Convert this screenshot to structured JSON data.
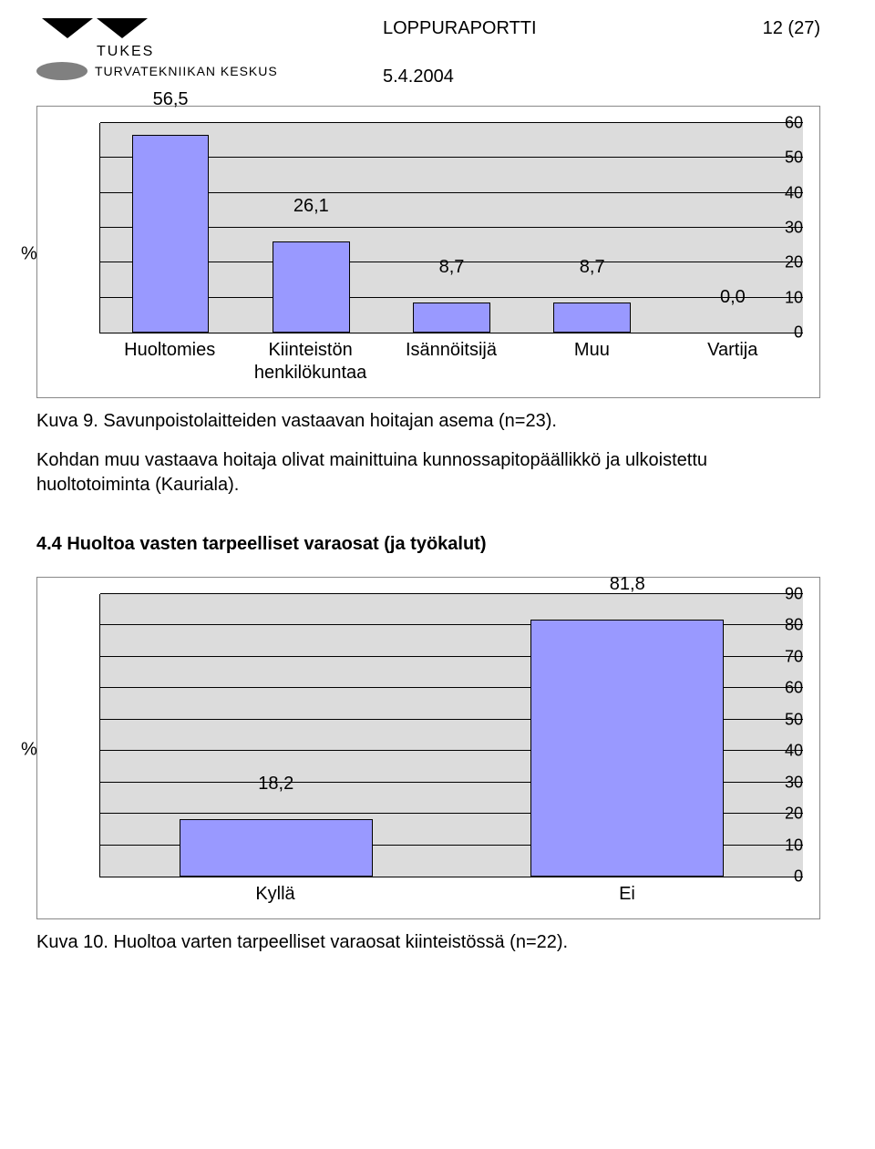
{
  "header": {
    "logo_main": "TUKES",
    "logo_sub": "TURVATEKNIIKAN KESKUS",
    "title": "LOPPURAPORTTI",
    "date": "5.4.2004",
    "page": "12 (27)"
  },
  "chart1": {
    "type": "bar",
    "y_title": "%",
    "y_ticks": [
      "0",
      "10",
      "20",
      "30",
      "40",
      "50",
      "60"
    ],
    "y_max": 60,
    "bar_color": "#9999ff",
    "plot_bg": "#dcdcdc",
    "grid_color": "#000000",
    "border_color": "#000000",
    "value_fontsize": 20,
    "label_fontsize": 20,
    "categories": [
      "Huoltomies",
      "Kiinteistön\nhenkilökuntaa",
      "Isännöitsijä",
      "Muu",
      "Vartija"
    ],
    "values": [
      56.5,
      26.1,
      8.7,
      8.7,
      0.0
    ],
    "value_labels": [
      "56,5",
      "26,1",
      "8,7",
      "8,7",
      "0,0"
    ]
  },
  "caption1": "Kuva 9. Savunpoistolaitteiden vastaavan hoitajan asema (n=23).",
  "para1": "Kohdan muu vastaava hoitaja olivat mainittuina kunnossapitopäällikkö ja ulkoistettu huoltotoiminta (Kauriala).",
  "section_title": "4.4 Huoltoa vasten tarpeelliset varaosat (ja työkalut)",
  "chart2": {
    "type": "bar",
    "y_title": "%",
    "y_ticks": [
      "0",
      "10",
      "20",
      "30",
      "40",
      "50",
      "60",
      "70",
      "80",
      "90"
    ],
    "y_max": 90,
    "bar_color": "#9999ff",
    "plot_bg": "#dcdcdc",
    "grid_color": "#000000",
    "border_color": "#000000",
    "value_fontsize": 20,
    "label_fontsize": 20,
    "categories": [
      "Kyllä",
      "Ei"
    ],
    "values": [
      18.2,
      81.8
    ],
    "value_labels": [
      "18,2",
      "81,8"
    ]
  },
  "caption2": "Kuva 10. Huoltoa varten tarpeelliset varaosat kiinteistössä (n=22)."
}
